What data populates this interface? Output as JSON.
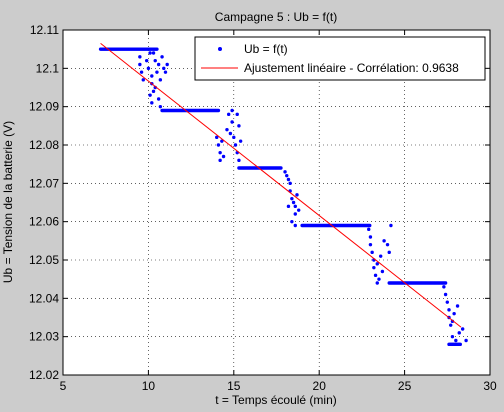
{
  "chart_data": {
    "type": "scatter",
    "title": "Campagne 5 : Ub = f(t)",
    "xlabel": "t = Temps écoulé (min)",
    "ylabel": "Ub = Tension de la batterie (V)",
    "xlim": [
      5,
      30
    ],
    "ylim": [
      12.02,
      12.11
    ],
    "xticks": [
      5,
      10,
      15,
      20,
      25,
      30
    ],
    "yticks": [
      12.02,
      12.03,
      12.04,
      12.05,
      12.06,
      12.07,
      12.08,
      12.09,
      12.1,
      12.11
    ],
    "xtick_labels": [
      "5",
      "10",
      "15",
      "20",
      "25",
      "30"
    ],
    "ytick_labels": [
      "12.02",
      "12.03",
      "12.04",
      "12.05",
      "12.06",
      "12.07",
      "12.08",
      "12.09",
      "12.1",
      "12.11"
    ],
    "grid": true,
    "legend_position": "top-right",
    "series": [
      {
        "name": "Ub = f(t)",
        "kind": "scatter",
        "color": "#0000ff",
        "segments": [
          {
            "x0": 7.2,
            "x1": 10.5,
            "y": 12.105
          },
          {
            "x0": 10.8,
            "x1": 14.1,
            "y": 12.089
          },
          {
            "x0": 15.3,
            "x1": 17.8,
            "y": 12.074
          },
          {
            "x0": 19.0,
            "x1": 23.0,
            "y": 12.059
          },
          {
            "x0": 24.1,
            "x1": 27.4,
            "y": 12.044
          },
          {
            "x0": 27.6,
            "x1": 28.3,
            "y": 12.028
          }
        ],
        "points": [
          [
            9.5,
            12.103
          ],
          [
            9.5,
            12.101
          ],
          [
            9.6,
            12.099
          ],
          [
            9.7,
            12.097
          ],
          [
            9.9,
            12.102
          ],
          [
            10.0,
            12.1
          ],
          [
            10.1,
            12.104
          ],
          [
            10.2,
            12.098
          ],
          [
            10.2,
            12.096
          ],
          [
            10.3,
            12.094
          ],
          [
            10.4,
            12.102
          ],
          [
            10.5,
            12.099
          ],
          [
            10.6,
            12.101
          ],
          [
            10.7,
            12.097
          ],
          [
            10.8,
            12.103
          ],
          [
            10.9,
            12.1
          ],
          [
            11.0,
            12.099
          ],
          [
            11.1,
            12.101
          ],
          [
            10.1,
            12.093
          ],
          [
            10.2,
            12.091
          ],
          [
            10.4,
            12.095
          ],
          [
            10.6,
            12.092
          ],
          [
            10.7,
            12.09
          ],
          [
            10.3,
            12.104
          ],
          [
            14.0,
            12.082
          ],
          [
            14.1,
            12.08
          ],
          [
            14.2,
            12.078
          ],
          [
            14.2,
            12.076
          ],
          [
            14.3,
            12.081
          ],
          [
            14.4,
            12.077
          ],
          [
            14.6,
            12.084
          ],
          [
            14.7,
            12.088
          ],
          [
            14.8,
            12.083
          ],
          [
            14.9,
            12.086
          ],
          [
            15.0,
            12.082
          ],
          [
            15.1,
            12.08
          ],
          [
            15.2,
            12.078
          ],
          [
            15.3,
            12.076
          ],
          [
            15.2,
            12.088
          ],
          [
            15.3,
            12.085
          ],
          [
            14.9,
            12.089
          ],
          [
            15.4,
            12.081
          ],
          [
            18.0,
            12.073
          ],
          [
            18.1,
            12.072
          ],
          [
            18.2,
            12.071
          ],
          [
            18.3,
            12.07
          ],
          [
            18.3,
            12.068
          ],
          [
            18.4,
            12.066
          ],
          [
            18.5,
            12.065
          ],
          [
            18.6,
            12.064
          ],
          [
            18.6,
            12.062
          ],
          [
            18.7,
            12.067
          ],
          [
            18.8,
            12.063
          ],
          [
            18.4,
            12.06
          ],
          [
            18.2,
            12.064
          ],
          [
            18.6,
            12.059
          ],
          [
            22.9,
            12.058
          ],
          [
            23.0,
            12.056
          ],
          [
            23.0,
            12.054
          ],
          [
            23.1,
            12.052
          ],
          [
            23.2,
            12.05
          ],
          [
            23.2,
            12.048
          ],
          [
            23.3,
            12.046
          ],
          [
            23.4,
            12.049
          ],
          [
            23.5,
            12.045
          ],
          [
            23.6,
            12.051
          ],
          [
            23.7,
            12.047
          ],
          [
            24.0,
            12.054
          ],
          [
            24.1,
            12.052
          ],
          [
            24.2,
            12.059
          ],
          [
            23.4,
            12.044
          ],
          [
            23.8,
            12.055
          ],
          [
            27.3,
            12.043
          ],
          [
            27.4,
            12.041
          ],
          [
            27.5,
            12.039
          ],
          [
            27.6,
            12.037
          ],
          [
            27.6,
            12.035
          ],
          [
            27.7,
            12.033
          ],
          [
            27.8,
            12.034
          ],
          [
            27.8,
            12.03
          ],
          [
            27.9,
            12.036
          ],
          [
            28.0,
            12.029
          ],
          [
            28.1,
            12.038
          ],
          [
            28.2,
            12.031
          ],
          [
            28.4,
            12.032
          ],
          [
            28.6,
            12.029
          ]
        ]
      },
      {
        "name": "Ajustement linéaire - Corrélation: 0.9638",
        "kind": "line",
        "color": "#ff0000",
        "x": [
          7.2,
          28.3
        ],
        "y": [
          12.1065,
          12.0325
        ]
      }
    ]
  }
}
